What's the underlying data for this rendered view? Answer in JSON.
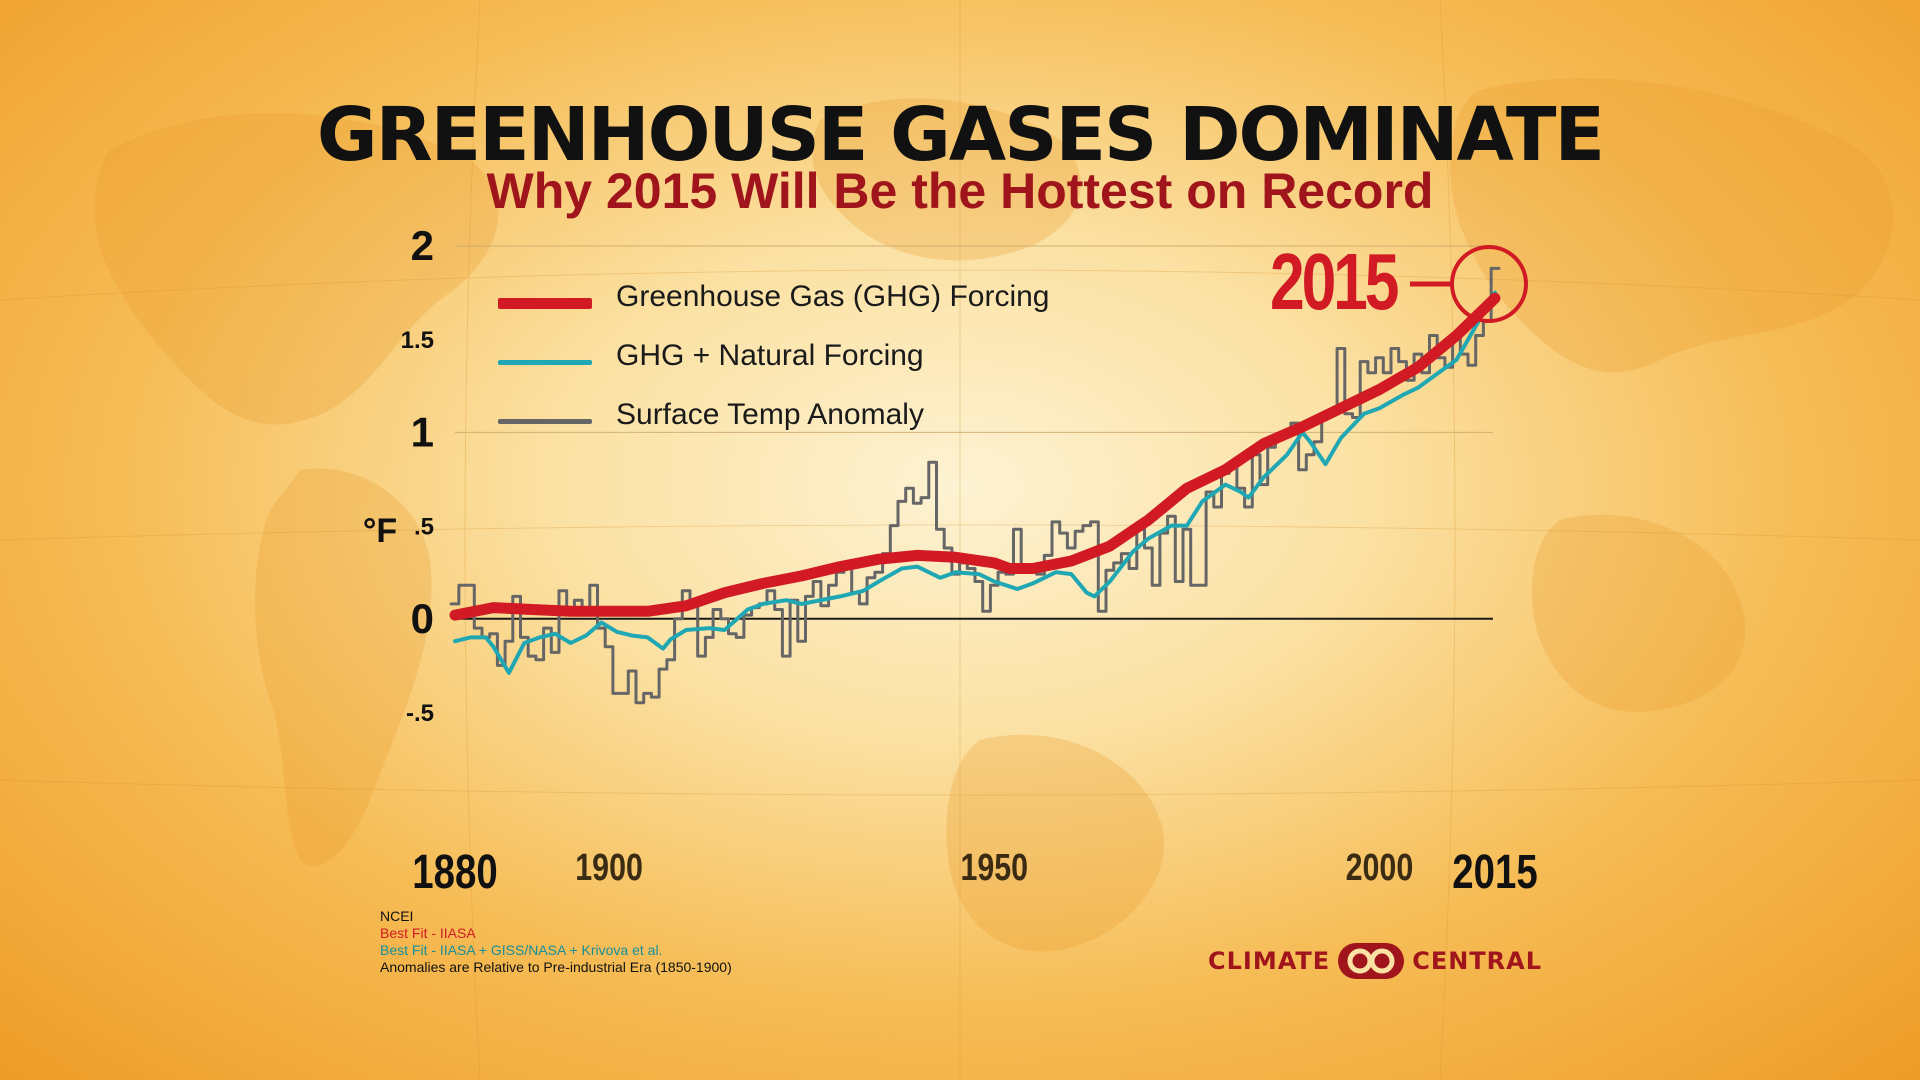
{
  "header": {
    "title": "GREENHOUSE GASES DOMINATE",
    "subtitle": "Why 2015 Will Be the Hottest on Record"
  },
  "colors": {
    "ghg": "#d11a24",
    "natural": "#1fa7b4",
    "surface": "#666666",
    "accent": "#a0141c"
  },
  "callout": {
    "year_label": "2015"
  },
  "sources": [
    {
      "text": "NCEI",
      "color": "#111111"
    },
    {
      "text": "Best Fit - IIASA",
      "color": "#d11a24"
    },
    {
      "text": "Best Fit - IIASA + GISS/NASA + Krivova et al.",
      "color": "#168f9a"
    },
    {
      "text": "Anomalies are Relative to Pre-industrial Era (1850-1900)",
      "color": "#111111"
    }
  ],
  "logo": {
    "left": "CLIMATE",
    "right": "CENTRAL"
  },
  "chart_data": {
    "type": "line",
    "title": "GREENHOUSE GASES DOMINATE",
    "subtitle": "Why 2015 Will Be the Hottest on Record",
    "xlabel": "",
    "ylabel": "°F",
    "xlim": [
      1880,
      2015
    ],
    "ylim": [
      -0.5,
      2
    ],
    "x_ticks": [
      1880,
      1900,
      1950,
      2000,
      2015
    ],
    "x_tick_labels": [
      "1880",
      "1900",
      "1950",
      "2000",
      "2015"
    ],
    "y_ticks": [
      -0.5,
      0,
      0.5,
      1,
      1.5,
      2
    ],
    "y_tick_labels": [
      "-.5",
      "0",
      ".5",
      "1",
      "1.5",
      "2"
    ],
    "gridlines": [
      0,
      1,
      2
    ],
    "legend_position": "top-left",
    "annotation": {
      "text": "2015",
      "x": 2015,
      "y": 1.88
    },
    "series": [
      {
        "name": "Greenhouse Gas (GHG) Forcing",
        "color": "#d11a24",
        "style": "thick",
        "x": [
          1880,
          1885,
          1890,
          1895,
          1900,
          1905,
          1910,
          1915,
          1920,
          1925,
          1930,
          1935,
          1940,
          1945,
          1950,
          1952,
          1955,
          1960,
          1965,
          1970,
          1975,
          1980,
          1985,
          1990,
          1995,
          2000,
          2005,
          2010,
          2015
        ],
        "y": [
          0.02,
          0.06,
          0.05,
          0.04,
          0.04,
          0.04,
          0.07,
          0.14,
          0.19,
          0.23,
          0.28,
          0.32,
          0.34,
          0.33,
          0.3,
          0.27,
          0.27,
          0.31,
          0.39,
          0.53,
          0.7,
          0.8,
          0.94,
          1.03,
          1.13,
          1.23,
          1.35,
          1.52,
          1.72
        ]
      },
      {
        "name": "GHG + Natural Forcing",
        "color": "#1fa7b4",
        "style": "medium",
        "x": [
          1880,
          1882,
          1884,
          1885,
          1887,
          1889,
          1891,
          1893,
          1895,
          1897,
          1899,
          1901,
          1903,
          1905,
          1907,
          1908,
          1910,
          1913,
          1915,
          1918,
          1920,
          1923,
          1925,
          1930,
          1933,
          1935,
          1938,
          1940,
          1943,
          1945,
          1948,
          1950,
          1953,
          1955,
          1958,
          1960,
          1962,
          1963,
          1965,
          1968,
          1970,
          1973,
          1975,
          1977,
          1980,
          1982,
          1983,
          1985,
          1988,
          1990,
          1991,
          1993,
          1995,
          1998,
          2000,
          2003,
          2005,
          2010,
          2015
        ],
        "y": [
          -0.12,
          -0.1,
          -0.1,
          -0.15,
          -0.29,
          -0.13,
          -0.1,
          -0.08,
          -0.13,
          -0.09,
          -0.02,
          -0.07,
          -0.09,
          -0.1,
          -0.16,
          -0.11,
          -0.06,
          -0.05,
          -0.06,
          0.05,
          0.08,
          0.1,
          0.08,
          0.12,
          0.15,
          0.2,
          0.27,
          0.28,
          0.22,
          0.25,
          0.24,
          0.2,
          0.16,
          0.19,
          0.25,
          0.24,
          0.14,
          0.12,
          0.2,
          0.36,
          0.43,
          0.5,
          0.5,
          0.63,
          0.72,
          0.68,
          0.65,
          0.76,
          0.88,
          1.0,
          0.95,
          0.83,
          0.97,
          1.1,
          1.13,
          1.2,
          1.24,
          1.39,
          1.75
        ]
      },
      {
        "name": "Surface Temp Anomaly",
        "color": "#666666",
        "style": "step",
        "x": [
          1880,
          1881,
          1882,
          1883,
          1884,
          1885,
          1886,
          1887,
          1888,
          1889,
          1890,
          1891,
          1892,
          1893,
          1894,
          1895,
          1896,
          1897,
          1898,
          1899,
          1900,
          1901,
          1902,
          1903,
          1904,
          1905,
          1906,
          1907,
          1908,
          1909,
          1910,
          1911,
          1912,
          1913,
          1914,
          1915,
          1916,
          1917,
          1918,
          1919,
          1920,
          1921,
          1922,
          1923,
          1924,
          1925,
          1926,
          1927,
          1928,
          1929,
          1930,
          1931,
          1932,
          1933,
          1934,
          1935,
          1936,
          1937,
          1938,
          1939,
          1940,
          1941,
          1942,
          1943,
          1944,
          1945,
          1946,
          1947,
          1948,
          1949,
          1950,
          1951,
          1952,
          1953,
          1954,
          1955,
          1956,
          1957,
          1958,
          1959,
          1960,
          1961,
          1962,
          1963,
          1964,
          1965,
          1966,
          1967,
          1968,
          1969,
          1970,
          1971,
          1972,
          1973,
          1974,
          1975,
          1976,
          1977,
          1978,
          1979,
          1980,
          1981,
          1982,
          1983,
          1984,
          1985,
          1986,
          1987,
          1988,
          1989,
          1990,
          1991,
          1992,
          1993,
          1994,
          1995,
          1996,
          1997,
          1998,
          1999,
          2000,
          2001,
          2002,
          2003,
          2004,
          2005,
          2006,
          2007,
          2008,
          2009,
          2010,
          2011,
          2012,
          2013,
          2014,
          2015
        ],
        "y": [
          0.08,
          0.18,
          0.18,
          -0.05,
          -0.1,
          -0.08,
          -0.25,
          -0.12,
          0.12,
          -0.1,
          -0.2,
          -0.22,
          -0.05,
          -0.18,
          0.15,
          0.05,
          0.1,
          0.04,
          0.18,
          -0.05,
          -0.15,
          -0.4,
          -0.4,
          -0.28,
          -0.45,
          -0.4,
          -0.42,
          -0.27,
          -0.22,
          0.0,
          0.15,
          0.08,
          -0.2,
          -0.1,
          0.05,
          0.0,
          -0.08,
          -0.1,
          0.02,
          0.06,
          0.08,
          0.15,
          0.05,
          -0.2,
          0.1,
          -0.12,
          0.12,
          0.2,
          0.07,
          0.18,
          0.25,
          0.28,
          0.14,
          0.08,
          0.22,
          0.25,
          0.35,
          0.5,
          0.63,
          0.7,
          0.62,
          0.65,
          0.84,
          0.48,
          0.38,
          0.24,
          0.3,
          0.27,
          0.2,
          0.04,
          0.18,
          0.25,
          0.24,
          0.48,
          0.25,
          0.25,
          0.24,
          0.34,
          0.52,
          0.46,
          0.38,
          0.47,
          0.5,
          0.52,
          0.04,
          0.26,
          0.3,
          0.35,
          0.27,
          0.48,
          0.38,
          0.18,
          0.46,
          0.55,
          0.2,
          0.48,
          0.18,
          0.18,
          0.68,
          0.6,
          0.78,
          0.84,
          0.7,
          0.6,
          0.88,
          0.72,
          0.92,
          0.98,
          1.0,
          1.05,
          0.8,
          0.88,
          0.95,
          1.1,
          1.12,
          1.45,
          1.1,
          1.08,
          1.38,
          1.32,
          1.4,
          1.32,
          1.45,
          1.38,
          1.28,
          1.42,
          1.32,
          1.52,
          1.4,
          1.35,
          1.52,
          1.42,
          1.36,
          1.52,
          1.6,
          1.88
        ]
      }
    ]
  }
}
